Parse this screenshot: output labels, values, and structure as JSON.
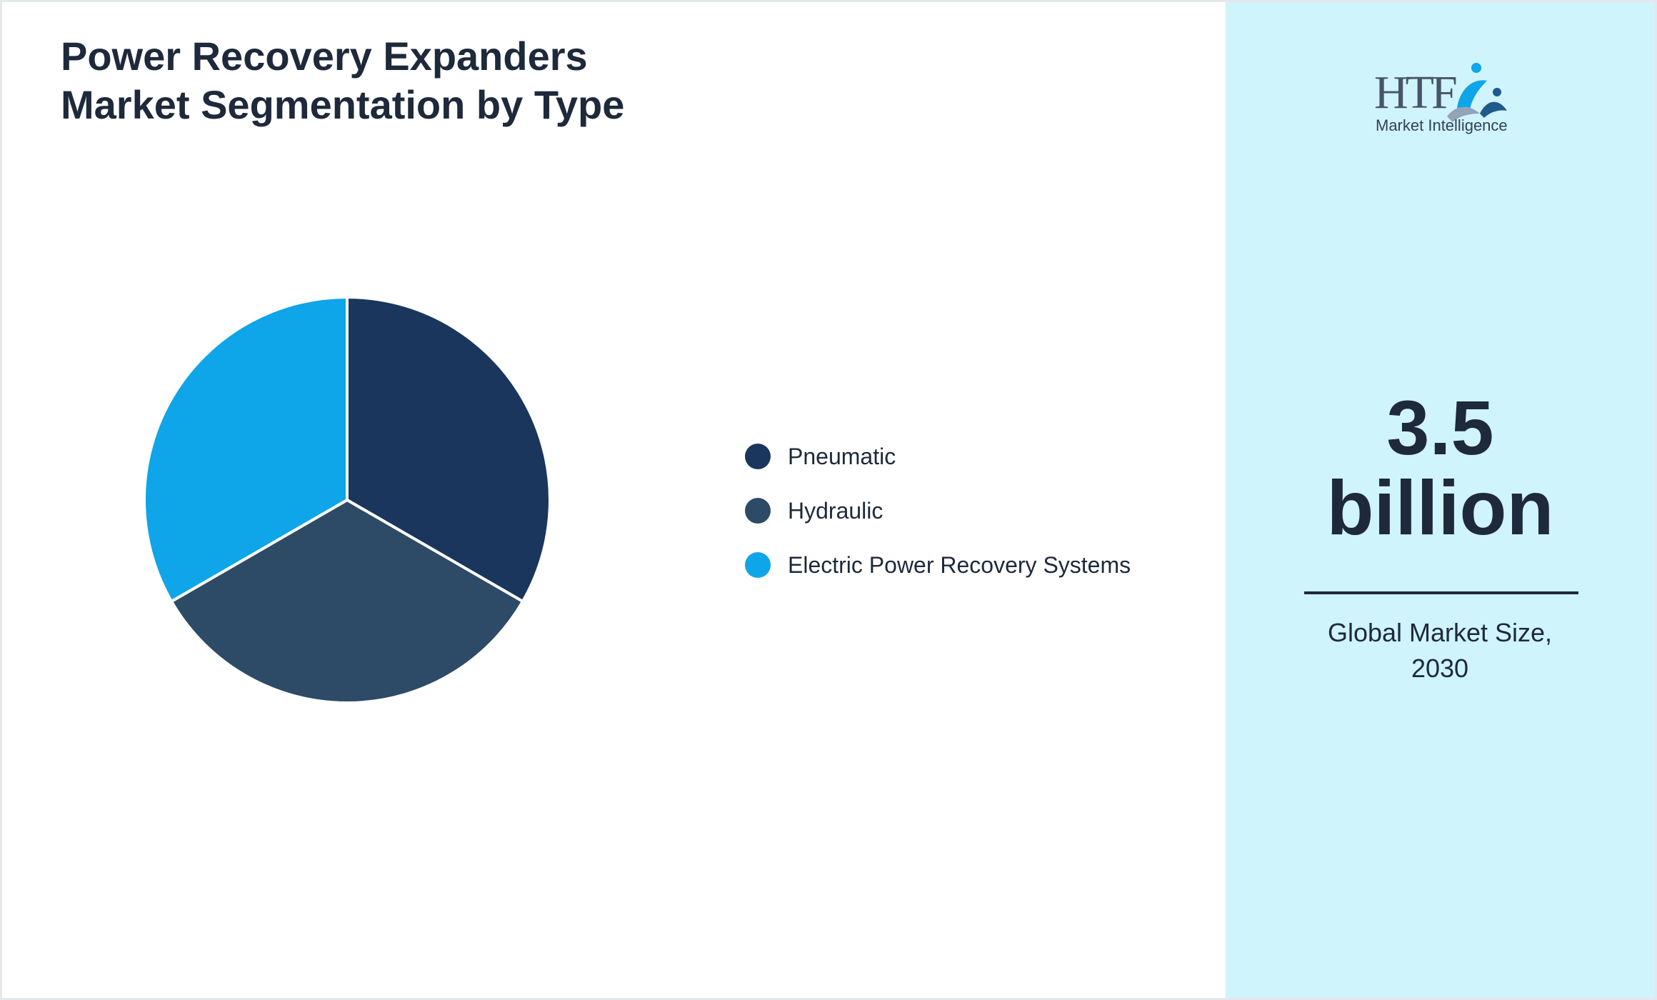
{
  "chart_data": {
    "type": "pie",
    "title": "Power Recovery Expanders Market Segmentation by Type",
    "title_lines": [
      "Power Recovery Expanders",
      "Market Segmentation by Type"
    ],
    "categories": [
      "Pneumatic",
      "Hydraulic",
      "Electric Power Recovery Systems"
    ],
    "values": [
      33.3,
      33.3,
      33.3
    ],
    "colors": [
      "#1b365d",
      "#2d4b66",
      "#0ea5e9"
    ],
    "legend_position": "right"
  },
  "side_panel": {
    "logo": {
      "text": "HTF",
      "subtext": "Market Intelligence",
      "icon": "htf-logo-icon"
    },
    "value_line1": "3.5",
    "value_line2": "billion",
    "caption_line1": "Global Market Size,",
    "caption_line2": "2030",
    "background": "#cff4fc"
  }
}
